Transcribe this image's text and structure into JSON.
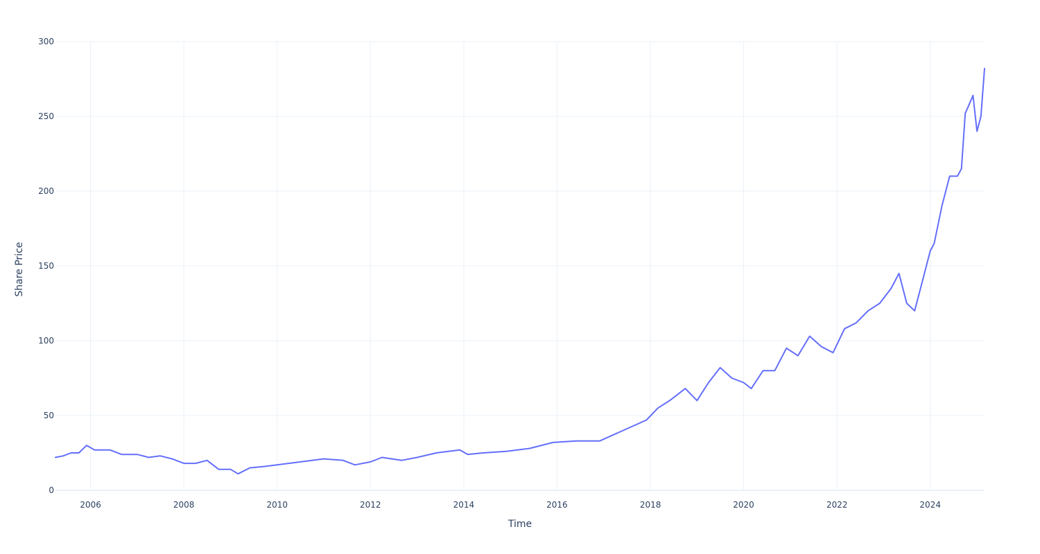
{
  "colors": {
    "series": "#636efa",
    "grid": "#ebf0f8",
    "text": "#2a3f5f",
    "background": "#ffffff"
  },
  "chart_data": {
    "type": "line",
    "title": "",
    "xlabel": "Time",
    "ylabel": "Share Price",
    "grid": true,
    "legend": "none",
    "x_tick_labels": [
      "2006",
      "2008",
      "2010",
      "2012",
      "2014",
      "2016",
      "2018",
      "2020",
      "2022",
      "2024"
    ],
    "y_tick_labels": [
      "0",
      "50",
      "100",
      "150",
      "200",
      "250",
      "300"
    ],
    "xlim": [
      "2005-04-01",
      "2025-03-01"
    ],
    "ylim": [
      0,
      300
    ],
    "series": [
      {
        "values": [
          [
            "2005-04-01",
            22
          ],
          [
            "2005-06-01",
            23
          ],
          [
            "2005-08-01",
            25
          ],
          [
            "2005-10-01",
            25
          ],
          [
            "2005-12-01",
            30
          ],
          [
            "2006-02-01",
            27
          ],
          [
            "2006-06-01",
            27
          ],
          [
            "2006-09-01",
            24
          ],
          [
            "2007-01-01",
            24
          ],
          [
            "2007-04-01",
            22
          ],
          [
            "2007-07-01",
            23
          ],
          [
            "2007-10-01",
            21
          ],
          [
            "2008-01-01",
            18
          ],
          [
            "2008-04-01",
            18
          ],
          [
            "2008-07-01",
            20
          ],
          [
            "2008-10-01",
            14
          ],
          [
            "2009-01-01",
            14
          ],
          [
            "2009-03-01",
            11
          ],
          [
            "2009-06-01",
            15
          ],
          [
            "2009-10-01",
            16
          ],
          [
            "2010-01-01",
            17
          ],
          [
            "2010-04-01",
            18
          ],
          [
            "2010-07-01",
            19
          ],
          [
            "2011-01-01",
            21
          ],
          [
            "2011-06-01",
            20
          ],
          [
            "2011-09-01",
            17
          ],
          [
            "2012-01-01",
            19
          ],
          [
            "2012-04-01",
            22
          ],
          [
            "2012-09-01",
            20
          ],
          [
            "2013-01-01",
            22
          ],
          [
            "2013-06-01",
            25
          ],
          [
            "2013-12-01",
            27
          ],
          [
            "2014-02-01",
            24
          ],
          [
            "2014-06-01",
            25
          ],
          [
            "2014-12-01",
            26
          ],
          [
            "2015-06-01",
            28
          ],
          [
            "2015-12-01",
            32
          ],
          [
            "2016-06-01",
            33
          ],
          [
            "2016-12-01",
            33
          ],
          [
            "2017-06-01",
            40
          ],
          [
            "2017-12-01",
            47
          ],
          [
            "2018-03-01",
            55
          ],
          [
            "2018-06-01",
            60
          ],
          [
            "2018-10-01",
            68
          ],
          [
            "2019-01-01",
            60
          ],
          [
            "2019-04-01",
            72
          ],
          [
            "2019-07-01",
            82
          ],
          [
            "2019-10-01",
            75
          ],
          [
            "2020-01-01",
            72
          ],
          [
            "2020-03-01",
            68
          ],
          [
            "2020-06-01",
            80
          ],
          [
            "2020-09-01",
            80
          ],
          [
            "2020-12-01",
            95
          ],
          [
            "2021-03-01",
            90
          ],
          [
            "2021-06-01",
            103
          ],
          [
            "2021-09-01",
            96
          ],
          [
            "2021-12-01",
            92
          ],
          [
            "2022-03-01",
            108
          ],
          [
            "2022-06-01",
            112
          ],
          [
            "2022-09-01",
            120
          ],
          [
            "2022-12-01",
            125
          ],
          [
            "2023-03-01",
            135
          ],
          [
            "2023-05-01",
            145
          ],
          [
            "2023-07-01",
            125
          ],
          [
            "2023-09-01",
            120
          ],
          [
            "2023-11-01",
            140
          ],
          [
            "2024-01-01",
            160
          ],
          [
            "2024-02-01",
            165
          ],
          [
            "2024-04-01",
            190
          ],
          [
            "2024-06-01",
            210
          ],
          [
            "2024-08-01",
            210
          ],
          [
            "2024-09-01",
            215
          ],
          [
            "2024-10-01",
            252
          ],
          [
            "2024-11-01",
            258
          ],
          [
            "2024-12-01",
            264
          ],
          [
            "2025-01-01",
            240
          ],
          [
            "2025-02-01",
            250
          ],
          [
            "2025-03-01",
            282
          ]
        ]
      }
    ]
  }
}
